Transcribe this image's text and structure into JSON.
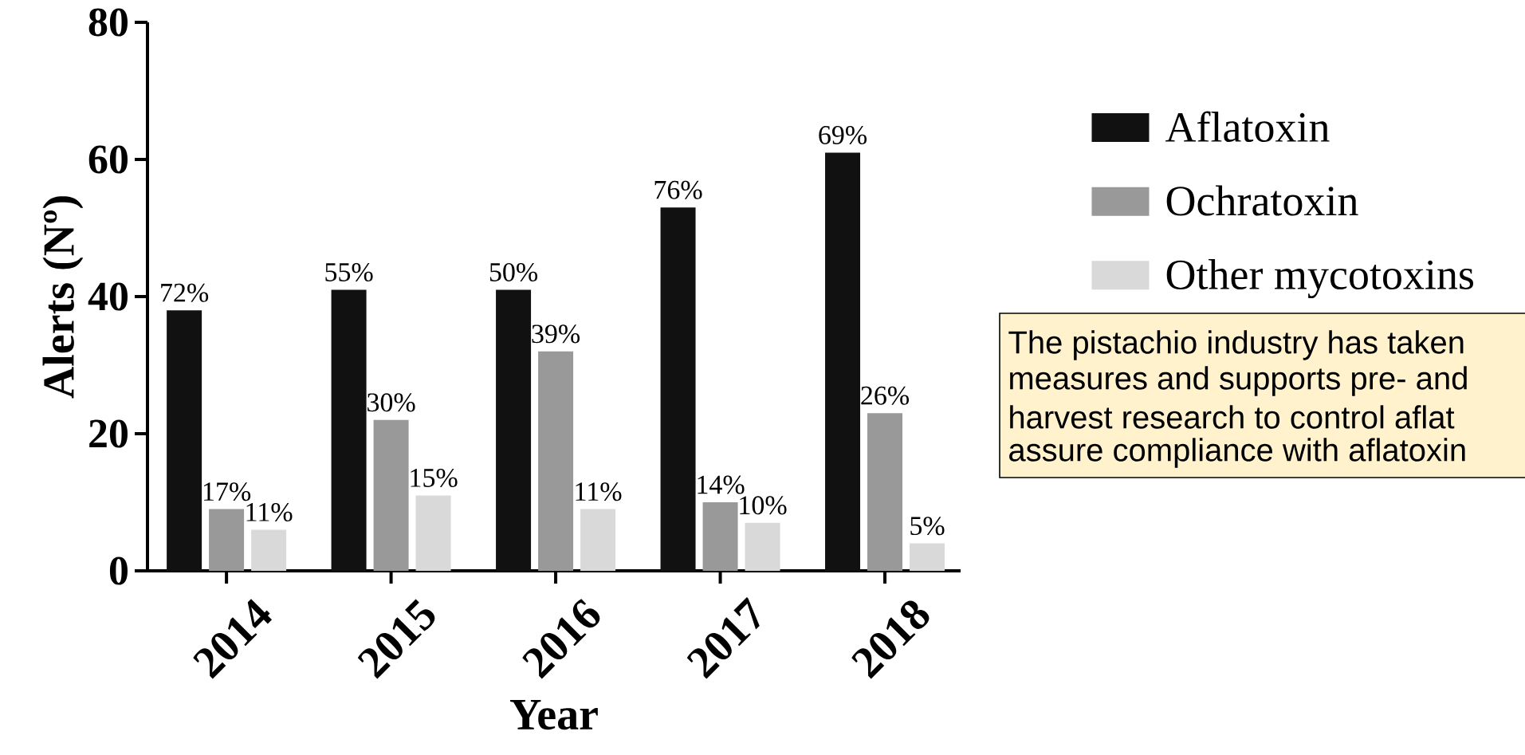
{
  "chart_data": {
    "type": "bar",
    "xlabel": "Year",
    "ylabel": "Alerts (Nº)",
    "categories": [
      "2014",
      "2015",
      "2016",
      "2017",
      "2018"
    ],
    "series": [
      {
        "name": "Aflatoxin",
        "color": "#111111",
        "values": [
          38,
          41,
          41,
          53,
          61
        ]
      },
      {
        "name": "Ochratoxin",
        "color": "#999999",
        "values": [
          9,
          22,
          32,
          10,
          23
        ]
      },
      {
        "name": "Other mycotoxins",
        "color": "#d9d9d9",
        "values": [
          6,
          11,
          9,
          7,
          4
        ]
      }
    ],
    "ylim": [
      0,
      80
    ],
    "yticks": [
      0,
      20,
      40,
      60,
      80
    ],
    "legend": "right",
    "annotations": [
      "72%",
      "17%",
      "11%",
      "55%",
      "30%",
      "15%",
      "50%",
      "39%",
      "11%",
      "76%",
      "14%",
      "10%",
      "69%",
      "26%",
      "5%",
      "The pistachio industry has taken",
      "measures and supports pre- and",
      "harvest research to control aflat",
      "assure compliance with aflatoxin"
    ]
  }
}
